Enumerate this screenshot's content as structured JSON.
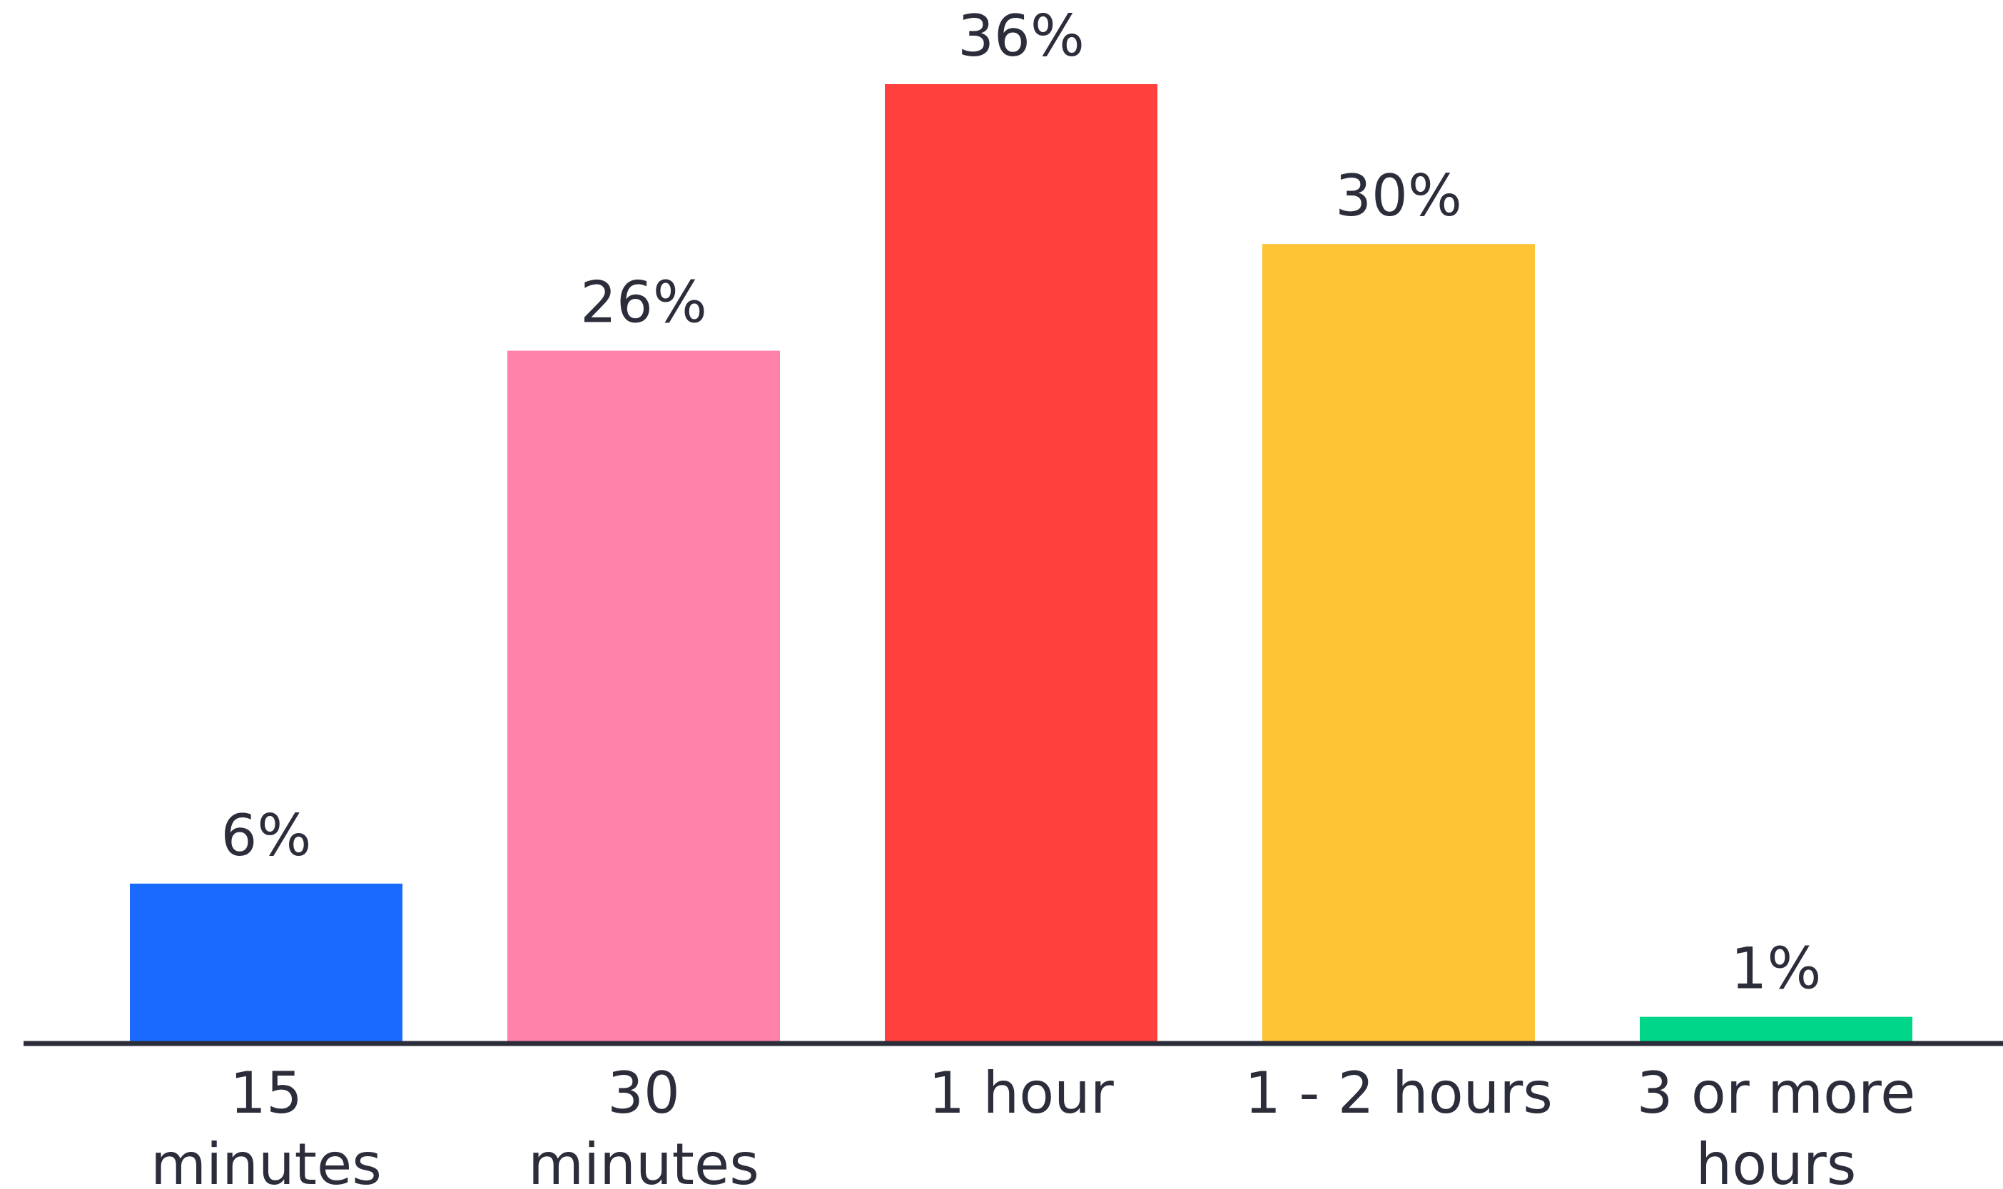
{
  "chart_data": {
    "type": "bar",
    "categories": [
      [
        "15",
        "minutes"
      ],
      [
        "30",
        "minutes"
      ],
      [
        "1 hour"
      ],
      [
        "1 - 2 hours"
      ],
      [
        "3 or more",
        "hours"
      ]
    ],
    "values": [
      6,
      26,
      36,
      30,
      1
    ],
    "value_labels": [
      "6%",
      "26%",
      "36%",
      "30%",
      "1%"
    ],
    "colors": [
      "#1a6aff",
      "#ff82ab",
      "#ff403c",
      "#ffc436",
      "#00d68a"
    ],
    "title": "",
    "xlabel": "",
    "ylabel": "",
    "ylim": [
      0,
      36
    ],
    "grid": false,
    "legend": "none"
  }
}
